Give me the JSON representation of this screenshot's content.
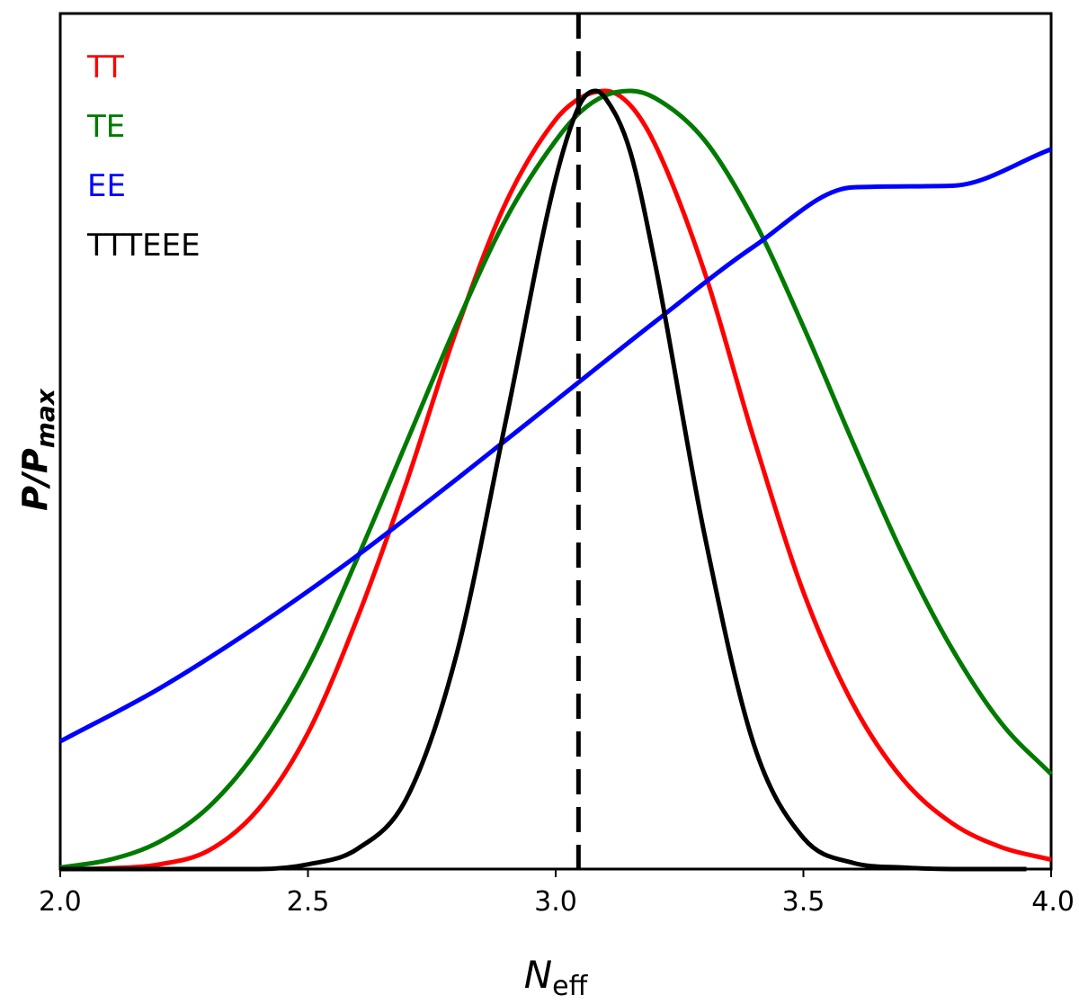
{
  "chart_data": {
    "type": "line",
    "xlabel": {
      "main": "N",
      "sub": "eff"
    },
    "ylabel": {
      "p1": "P",
      "slash": "/",
      "p2": "P",
      "sub": "max"
    },
    "xlim": [
      2.0,
      4.0
    ],
    "ylim": [
      0,
      1.0
    ],
    "xticks": [
      2.0,
      2.5,
      3.0,
      3.5,
      4.0
    ],
    "xtick_labels": [
      "2.0",
      "2.5",
      "3.0",
      "3.5",
      "4.0"
    ],
    "grid": false,
    "legend_placement": "top-left",
    "reference_line": {
      "x": 3.046,
      "style": "dashed",
      "color": "#000000"
    },
    "series": [
      {
        "name": "TT",
        "color": "#ff0000",
        "x": [
          2.0,
          2.1,
          2.2,
          2.3,
          2.4,
          2.5,
          2.6,
          2.7,
          2.8,
          2.9,
          3.0,
          3.05,
          3.1,
          3.15,
          3.2,
          3.3,
          3.4,
          3.5,
          3.6,
          3.7,
          3.8,
          3.9,
          4.0
        ],
        "y": [
          0.0,
          0.001,
          0.006,
          0.024,
          0.077,
          0.175,
          0.323,
          0.499,
          0.693,
          0.857,
          0.963,
          0.991,
          1.0,
          0.982,
          0.932,
          0.768,
          0.553,
          0.356,
          0.212,
          0.116,
          0.059,
          0.028,
          0.012
        ]
      },
      {
        "name": "TE",
        "color": "#007a00",
        "x": [
          2.0,
          2.1,
          2.2,
          2.3,
          2.4,
          2.5,
          2.6,
          2.7,
          2.8,
          2.9,
          3.0,
          3.05,
          3.1,
          3.15,
          3.2,
          3.3,
          3.4,
          3.5,
          3.6,
          3.7,
          3.8,
          3.9,
          4.0
        ],
        "y": [
          0.002,
          0.012,
          0.035,
          0.08,
          0.155,
          0.26,
          0.4,
          0.55,
          0.7,
          0.836,
          0.936,
          0.973,
          0.994,
          1.0,
          0.991,
          0.937,
          0.834,
          0.697,
          0.548,
          0.405,
          0.283,
          0.187,
          0.122
        ]
      },
      {
        "name": "EE",
        "color": "#0000ff",
        "x": [
          2.0,
          2.2,
          2.4,
          2.6,
          2.8,
          3.0,
          3.2,
          3.4,
          3.6,
          3.8,
          4.0
        ],
        "y": [
          0.164,
          0.232,
          0.313,
          0.403,
          0.501,
          0.602,
          0.703,
          0.8,
          0.876,
          0.878,
          0.925
        ]
      },
      {
        "name": "TTTEEE",
        "color": "#000000",
        "x": [
          2.0,
          2.4,
          2.5,
          2.6,
          2.7,
          2.8,
          2.9,
          3.0,
          3.05,
          3.08,
          3.1,
          3.15,
          3.2,
          3.3,
          3.4,
          3.5,
          3.6,
          3.7,
          3.8,
          3.95
        ],
        "y": [
          0.0,
          0.0,
          0.006,
          0.026,
          0.092,
          0.276,
          0.578,
          0.887,
          0.984,
          1.0,
          0.991,
          0.923,
          0.78,
          0.431,
          0.16,
          0.04,
          0.008,
          0.002,
          0.0,
          0.0
        ]
      }
    ]
  }
}
